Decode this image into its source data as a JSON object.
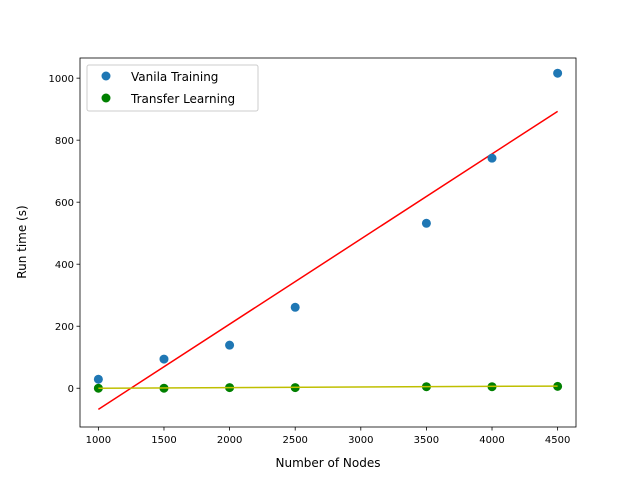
{
  "chart_data": {
    "type": "scatter",
    "title": "",
    "xlabel": "Number of Nodes",
    "ylabel": "Run time (s)",
    "xlim": [
      860,
      4640
    ],
    "ylim": [
      -125,
      1065
    ],
    "xticks": [
      1000,
      1500,
      2000,
      2500,
      3000,
      3500,
      4000,
      4500
    ],
    "yticks": [
      0,
      200,
      400,
      600,
      800,
      1000
    ],
    "legend_position": "top-left",
    "series": [
      {
        "name": "Vanila Training",
        "color": "#1f77b4",
        "x": [
          1000,
          1500,
          2000,
          2500,
          3500,
          4000,
          4500
        ],
        "y": [
          29,
          94,
          139,
          261,
          532,
          742,
          1016
        ]
      },
      {
        "name": "Transfer Learning",
        "color": "#008000",
        "x": [
          1000,
          1500,
          2000,
          2500,
          3500,
          4000,
          4500
        ],
        "y": [
          0,
          0,
          2,
          2,
          5,
          5,
          6
        ]
      }
    ],
    "fit_lines": [
      {
        "name": "Vanila Training fit",
        "color": "#ff0000",
        "x": [
          1000,
          4500
        ],
        "y": [
          -68,
          893
        ]
      },
      {
        "name": "Transfer Learning fit",
        "color": "#bfbf00",
        "x": [
          1000,
          4500
        ],
        "y": [
          0,
          7
        ]
      }
    ]
  }
}
